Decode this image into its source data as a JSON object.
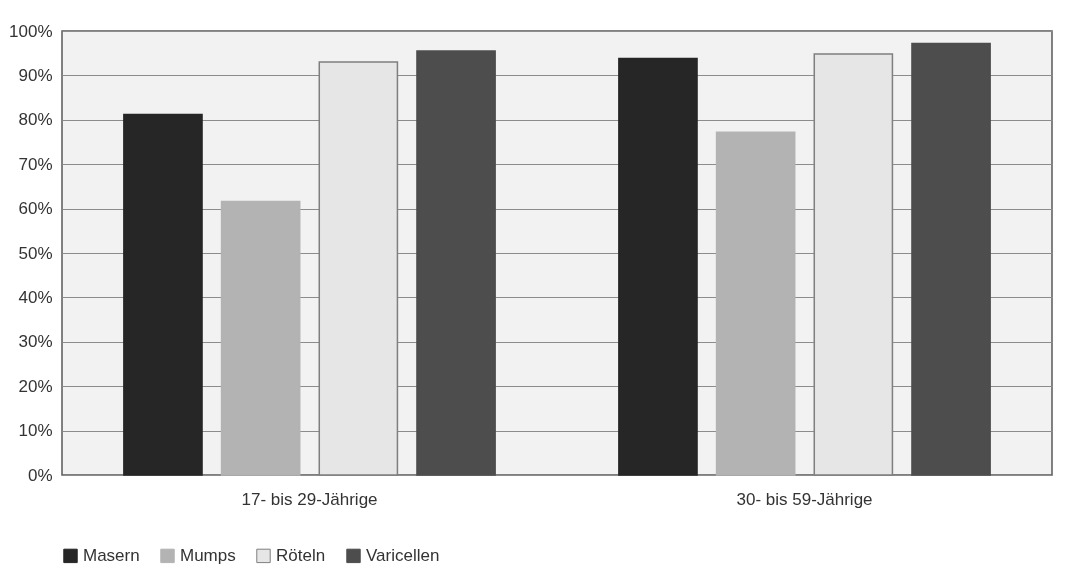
{
  "chart_data": {
    "type": "bar",
    "categories": [
      "17- bis 29-Jährige",
      "30- bis 59-Jährige"
    ],
    "series": [
      {
        "name": "Masern",
        "color": "#262626",
        "values": [
          81.2,
          93.8
        ]
      },
      {
        "name": "Mumps",
        "color": "#b3b3b3",
        "values": [
          61.6,
          77.2
        ]
      },
      {
        "name": "Röteln",
        "color": "#e6e6e6",
        "values": [
          93.0,
          94.8
        ]
      },
      {
        "name": "Varicellen",
        "color": "#4d4d4d",
        "values": [
          95.5,
          97.2
        ]
      }
    ],
    "ylim": [
      0,
      100
    ],
    "yticks": [
      {
        "value": 0,
        "label": "0%"
      },
      {
        "value": 10,
        "label": "10%"
      },
      {
        "value": 20,
        "label": "20%"
      },
      {
        "value": 30,
        "label": "30%"
      },
      {
        "value": 40,
        "label": "40%"
      },
      {
        "value": 50,
        "label": "50%"
      },
      {
        "value": 60,
        "label": "60%"
      },
      {
        "value": 70,
        "label": "70%"
      },
      {
        "value": 80,
        "label": "80%"
      },
      {
        "value": 90,
        "label": "90%"
      },
      {
        "value": 100,
        "label": "100%"
      }
    ],
    "grid": "y",
    "legend": "bottom"
  }
}
